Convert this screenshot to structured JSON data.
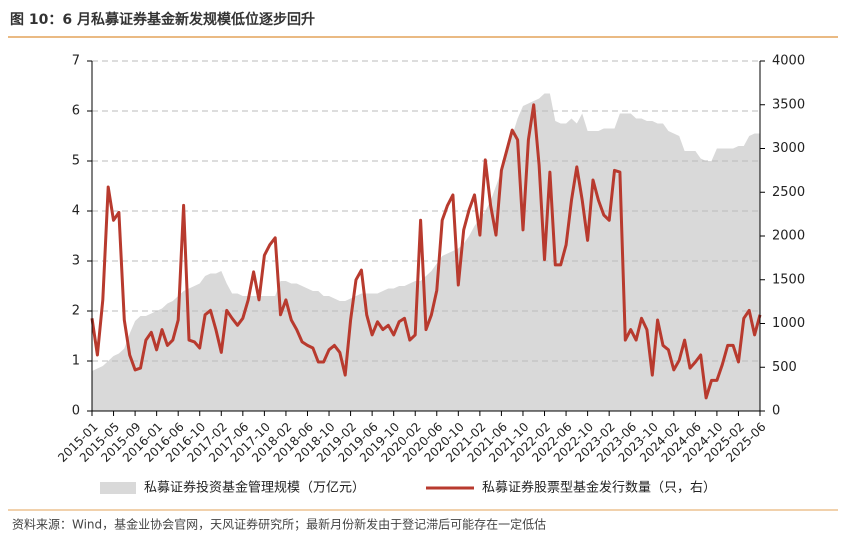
{
  "chart_data": {
    "type": "combo",
    "title": "图 10：6 月私募证券基金新发规模低位逐步回升",
    "source": "资料来源：Wind，基金业协会官网，天风证券研究所；最新月份新发由于登记滞后可能存在一定低估",
    "categories": [
      "2015-01",
      null,
      null,
      null,
      "2015-05",
      null,
      null,
      null,
      "2015-09",
      null,
      null,
      null,
      "2016-01",
      null,
      null,
      null,
      "2016-06",
      null,
      null,
      null,
      "2016-10",
      null,
      null,
      null,
      "2017-02",
      null,
      null,
      null,
      "2017-06",
      null,
      null,
      null,
      "2017-10",
      null,
      null,
      null,
      "2018-02",
      null,
      null,
      null,
      "2018-06",
      null,
      null,
      null,
      "2018-10",
      null,
      null,
      null,
      "2019-02",
      null,
      null,
      null,
      "2019-06",
      null,
      null,
      null,
      "2019-10",
      null,
      null,
      null,
      "2020-02",
      null,
      null,
      null,
      "2020-06",
      null,
      null,
      null,
      "2020-10",
      null,
      null,
      null,
      "2021-02",
      null,
      null,
      null,
      "2021-06",
      null,
      null,
      null,
      "2021-10",
      null,
      null,
      null,
      "2022-02",
      null,
      null,
      null,
      "2022-06",
      null,
      null,
      null,
      "2022-10",
      null,
      null,
      null,
      "2023-02",
      null,
      null,
      null,
      "2023-06",
      null,
      null,
      null,
      "2023-10",
      null,
      null,
      null,
      "2024-02",
      null,
      null,
      null,
      "2024-06",
      null,
      null,
      null,
      "2024-10",
      null,
      null,
      null,
      "2025-02",
      null,
      null,
      null,
      "2025-06"
    ],
    "series": [
      {
        "name": "私募证券投资基金管理规模（万亿元）",
        "type": "area",
        "color": "#d9d9d9",
        "values": [
          0.8,
          0.85,
          0.9,
          1.0,
          1.1,
          1.15,
          1.25,
          1.55,
          1.8,
          1.9,
          1.9,
          1.95,
          2.0,
          2.05,
          2.15,
          2.2,
          2.3,
          2.4,
          2.45,
          2.5,
          2.55,
          2.7,
          2.75,
          2.75,
          2.8,
          2.55,
          2.35,
          2.35,
          2.3,
          2.3,
          2.3,
          2.3,
          2.3,
          2.3,
          2.3,
          2.6,
          2.6,
          2.55,
          2.55,
          2.5,
          2.45,
          2.4,
          2.4,
          2.3,
          2.3,
          2.25,
          2.2,
          2.2,
          2.25,
          2.3,
          2.35,
          2.35,
          2.35,
          2.35,
          2.4,
          2.45,
          2.45,
          2.5,
          2.5,
          2.55,
          2.6,
          2.6,
          2.7,
          2.8,
          2.95,
          3.1,
          3.15,
          3.2,
          3.25,
          3.35,
          3.5,
          3.7,
          3.85,
          4.0,
          4.2,
          4.5,
          4.8,
          5.2,
          5.5,
          5.85,
          6.1,
          6.15,
          6.2,
          6.25,
          6.35,
          6.35,
          5.8,
          5.75,
          5.75,
          5.85,
          5.75,
          5.95,
          5.6,
          5.6,
          5.6,
          5.65,
          5.65,
          5.65,
          5.95,
          5.95,
          5.95,
          5.85,
          5.85,
          5.8,
          5.8,
          5.75,
          5.75,
          5.6,
          5.55,
          5.5,
          5.2,
          5.2,
          5.2,
          5.05,
          5.0,
          5.0,
          5.25,
          5.25,
          5.25,
          5.25,
          5.3,
          5.3,
          5.5,
          5.55,
          5.55
        ]
      },
      {
        "name": "私募证券股票型基金发行数量（只，右）",
        "type": "line",
        "axis": "y2",
        "color": "#b83a2e",
        "values": [
          1060,
          640,
          1270,
          2560,
          2180,
          2270,
          1040,
          640,
          470,
          490,
          810,
          900,
          700,
          930,
          750,
          810,
          1040,
          2350,
          810,
          790,
          720,
          1100,
          1150,
          930,
          670,
          1150,
          1060,
          980,
          1060,
          1270,
          1590,
          1270,
          1780,
          1900,
          1980,
          1100,
          1270,
          1040,
          930,
          790,
          750,
          720,
          560,
          560,
          700,
          750,
          670,
          410,
          1040,
          1500,
          1610,
          1100,
          870,
          1020,
          930,
          980,
          870,
          1020,
          1060,
          810,
          870,
          2180,
          930,
          1100,
          1380,
          2180,
          2350,
          2470,
          1440,
          2070,
          2300,
          2470,
          2010,
          2870,
          2350,
          2010,
          2750,
          2980,
          3210,
          3100,
          2070,
          3100,
          3500,
          2810,
          1730,
          2730,
          1670,
          1670,
          1900,
          2410,
          2790,
          2410,
          1950,
          2640,
          2410,
          2240,
          2180,
          2750,
          2730,
          810,
          930,
          810,
          1060,
          930,
          410,
          1040,
          750,
          700,
          470,
          580,
          810,
          490,
          560,
          640,
          150,
          350,
          350,
          530,
          750,
          750,
          560,
          1060,
          1150,
          870,
          1100
        ]
      }
    ],
    "ylim": [
      0,
      7
    ],
    "yticks": [
      0,
      1,
      2,
      3,
      4,
      5,
      6,
      7
    ],
    "y2lim": [
      0,
      4000
    ],
    "y2ticks": [
      0,
      500,
      1000,
      1500,
      2000,
      2500,
      3000,
      3500,
      4000
    ],
    "grid": true
  }
}
